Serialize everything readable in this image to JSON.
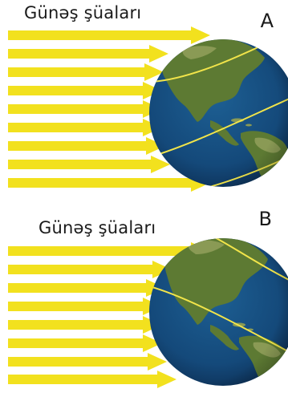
{
  "panels": [
    {
      "id": "A",
      "title": "Günəş şüaları",
      "letter": "A",
      "ray_count": 9
    },
    {
      "id": "B",
      "title": "Günəş şüaları",
      "letter": "B",
      "ray_count": 9
    }
  ],
  "colors": {
    "ray": "#f2e11e",
    "ocean": "#14497a",
    "ocean_dark": "#0b2a4d",
    "land": "#5d7a33",
    "land_light": "#8a9a55",
    "line": "#f1e44a"
  },
  "icons": {
    "globe": "earth-globe-icon"
  }
}
